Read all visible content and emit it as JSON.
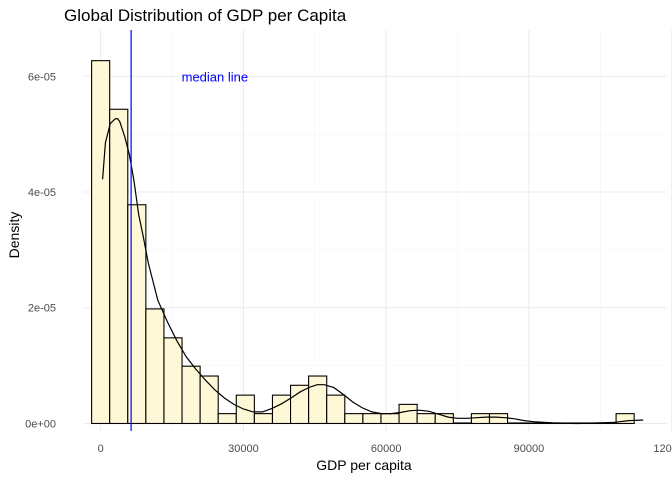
{
  "chart_data": {
    "type": "bar",
    "subtype": "histogram-with-density",
    "title": "Global Distribution of GDP per Capita",
    "xlabel": "GDP per capita",
    "ylabel": "Density",
    "xlim": [
      -3500,
      119000
    ],
    "ylim": [
      -1.3e-06,
      6.8e-05
    ],
    "x_ticks": [
      {
        "value": 0,
        "label": "0"
      },
      {
        "value": 30000,
        "label": "30000"
      },
      {
        "value": 60000,
        "label": "60000"
      },
      {
        "value": 90000,
        "label": "90000"
      },
      {
        "value": 120000,
        "label": "120000"
      }
    ],
    "y_ticks": [
      {
        "value": 0,
        "label": "0e+00"
      },
      {
        "value": 2e-05,
        "label": "2e-05"
      },
      {
        "value": 4e-05,
        "label": "4e-05"
      },
      {
        "value": 6e-05,
        "label": "6e-05"
      }
    ],
    "grid": true,
    "bin_width": 3800,
    "bins_x": [
      0,
      3800,
      7600,
      11400,
      15200,
      19000,
      22800,
      26600,
      30400,
      34200,
      38000,
      41800,
      45600,
      49400,
      53200,
      57000,
      60800,
      64600,
      68400,
      72200,
      76000,
      79800,
      83600,
      87400,
      91200,
      95000,
      98800,
      102600,
      106400,
      110200,
      114000
    ],
    "bin_values": [
      6.27e-05,
      5.43e-05,
      3.78e-05,
      1.98e-05,
      1.48e-05,
      9.9e-06,
      8.2e-06,
      1.7e-06,
      4.9e-06,
      1.7e-06,
      4.9e-06,
      6.6e-06,
      8.2e-06,
      4.9e-06,
      1.7e-06,
      1.7e-06,
      1.7e-06,
      3.3e-06,
      1.7e-06,
      1.7e-06,
      0,
      1.7e-06,
      1.7e-06,
      0,
      0,
      0,
      0,
      0,
      0,
      1.7e-06
    ],
    "density_curve": {
      "x": [
        400,
        1000,
        2000,
        3000,
        3500,
        4000,
        5000,
        6000,
        7000,
        8000,
        9000,
        10000,
        12000,
        14000,
        16000,
        18000,
        20000,
        22000,
        24000,
        26000,
        28000,
        30000,
        32000,
        34000,
        36000,
        38000,
        40000,
        42000,
        44000,
        45500,
        47000,
        49000,
        51000,
        53000,
        55000,
        57000,
        59000,
        61000,
        63000,
        65000,
        67000,
        69000,
        71000,
        73000,
        75000,
        77000,
        79000,
        81000,
        83000,
        85000,
        87000,
        89000,
        91000,
        95000,
        100000,
        105000,
        108000,
        111000,
        114000
      ],
      "y": [
        4.22e-05,
        4.85e-05,
        5.18e-05,
        5.26e-05,
        5.27e-05,
        5.22e-05,
        4.97e-05,
        4.66e-05,
        4.19e-05,
        3.61e-05,
        3.21e-05,
        2.78e-05,
        2.13e-05,
        1.76e-05,
        1.43e-05,
        1.15e-05,
        9.4e-06,
        7.5e-06,
        5.8e-06,
        4.4e-06,
        3.3e-06,
        2.5e-06,
        2e-06,
        2e-06,
        2.6e-06,
        3.4e-06,
        4.4e-06,
        5.5e-06,
        6.3e-06,
        6.7e-06,
        6.7e-06,
        6.2e-06,
        5e-06,
        3.7e-06,
        2.7e-06,
        2e-06,
        1.7e-06,
        1.7e-06,
        1.9e-06,
        2.2e-06,
        2.3e-06,
        2.1e-06,
        1.6e-06,
        1.1e-06,
        9e-07,
        9e-07,
        1e-06,
        1.1e-06,
        1.1e-06,
        1e-06,
        8e-07,
        5e-07,
        3e-07,
        1e-07,
        0,
        1e-07,
        2e-07,
        5e-07,
        6e-07
      ]
    },
    "median": 6400,
    "annotation": {
      "text": "median line",
      "x": 24000,
      "y": 6e-05,
      "color": "#0000ff"
    },
    "colors": {
      "bar_fill": "#fff8d6",
      "bar_outline": "#000000",
      "density_line": "#000000",
      "median_line": "#0000ff",
      "background": "#ffffff"
    }
  }
}
